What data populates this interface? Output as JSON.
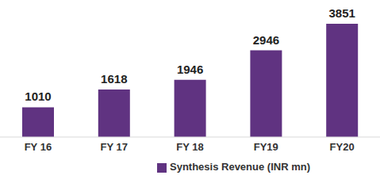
{
  "chart_data": {
    "type": "bar",
    "categories": [
      "FY 16",
      "FY 17",
      "FY 18",
      "FY19",
      "FY20"
    ],
    "series": [
      {
        "name": "Synthesis Revenue  (INR mn)",
        "color": "#603381",
        "values": [
          1010,
          1618,
          1946,
          2946,
          3851
        ]
      }
    ],
    "data_labels": true,
    "tick_labels": "x",
    "grid": false,
    "legend": "bottom"
  }
}
